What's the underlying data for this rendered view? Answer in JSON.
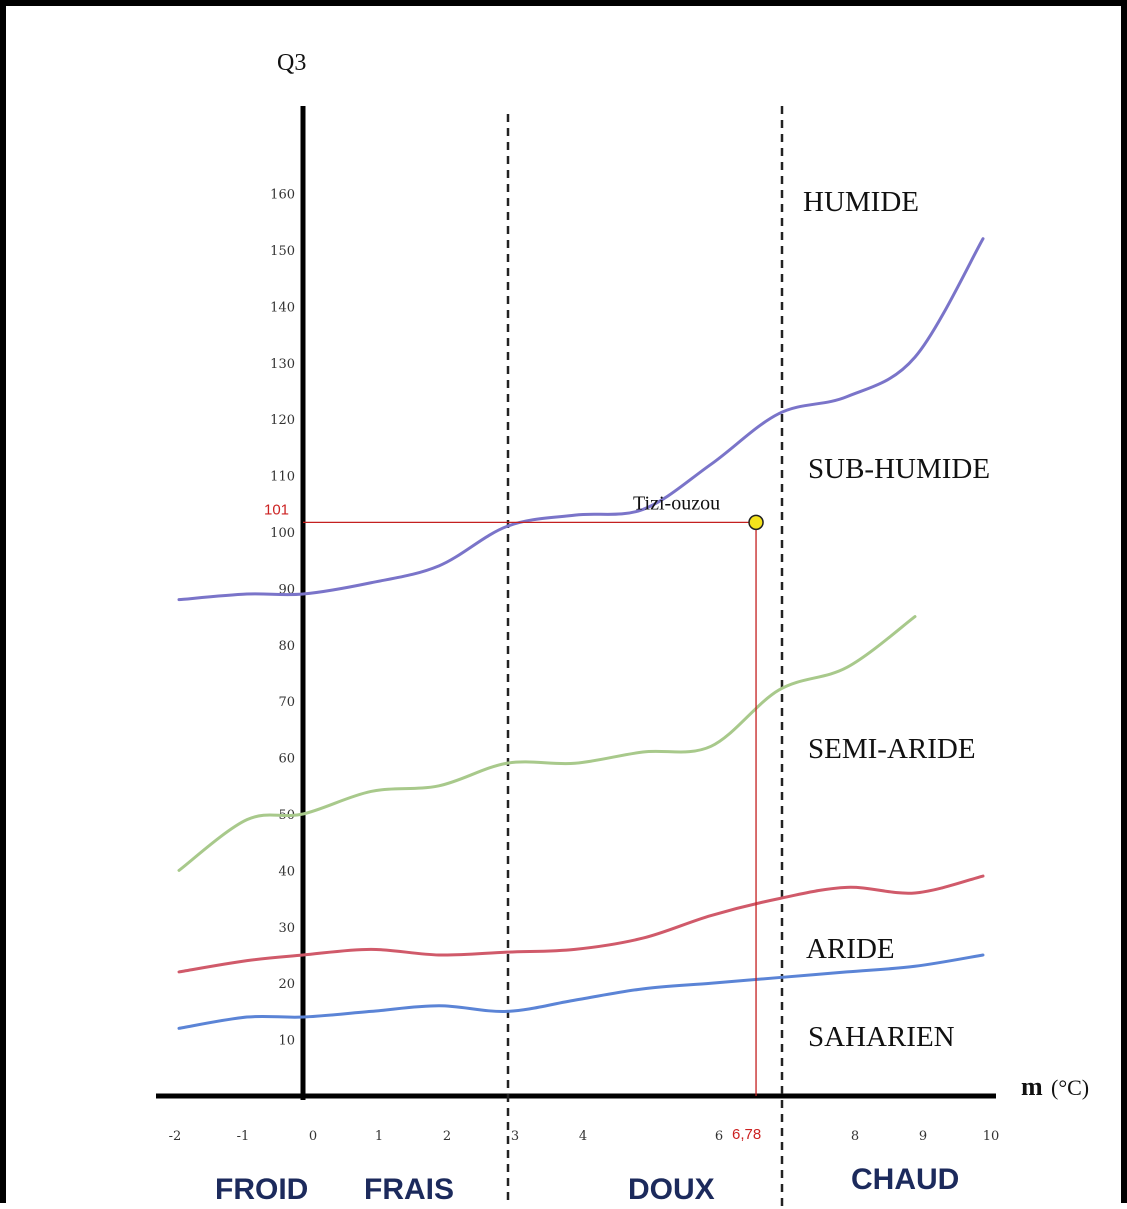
{
  "chart_data": {
    "type": "line",
    "y_title": "Q3",
    "x_title": "m",
    "x_unit": "(°C)",
    "xlim": [
      -2,
      10
    ],
    "ylim": [
      0,
      165
    ],
    "x_ticks": [
      "-2",
      "-1",
      "0",
      "1",
      "2",
      "3",
      "4",
      "6",
      "8",
      "9",
      "10"
    ],
    "y_ticks": [
      "10",
      "20",
      "30",
      "40",
      "50",
      "60",
      "70",
      "80",
      "90",
      "100",
      "110",
      "120",
      "130",
      "140",
      "150",
      "160"
    ],
    "series": [
      {
        "color": "#7a74c9",
        "x": [
          -2,
          -1,
          0,
          1,
          2,
          3,
          4,
          5,
          6,
          7,
          8,
          9,
          10
        ],
        "y": [
          88,
          89,
          89,
          91,
          94,
          101,
          103,
          104,
          112,
          121,
          124,
          131,
          152
        ]
      },
      {
        "color": "#a8c98b",
        "x": [
          -2,
          -1,
          0,
          1,
          2,
          3,
          4,
          5,
          6,
          7,
          8,
          9
        ],
        "y": [
          40,
          49,
          50,
          54,
          55,
          59,
          59,
          61,
          62,
          72,
          76,
          85
        ]
      },
      {
        "color": "#d05a6a",
        "x": [
          -2,
          -1,
          0,
          1,
          2,
          3,
          4,
          5,
          6,
          7,
          8,
          9,
          10
        ],
        "y": [
          22,
          24,
          25,
          26,
          25,
          25.5,
          26,
          28,
          32,
          35,
          37,
          36,
          39
        ]
      },
      {
        "color": "#5b84d6",
        "x": [
          -2,
          -1,
          0,
          1,
          2,
          3,
          4,
          5,
          6,
          7,
          8,
          9,
          10
        ],
        "y": [
          12,
          14,
          14,
          15,
          16,
          15,
          17,
          19,
          20,
          21,
          22,
          23,
          25
        ]
      }
    ],
    "zone_labels": [
      "HUMIDE",
      "SUB-HUMIDE",
      "SEMI-ARIDE",
      "ARIDE",
      "SAHARIEN"
    ],
    "region_labels": [
      "FROID",
      "FRAIS",
      "DOUX",
      "CHAUD"
    ],
    "region_boundaries_x": [
      3,
      7
    ],
    "point": {
      "label": "Tizi-ouzou",
      "x": 6.78,
      "y": 101,
      "x_label": "6,78",
      "y_label": "101",
      "color": "#f5e31c"
    }
  }
}
